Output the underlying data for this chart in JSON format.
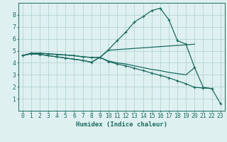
{
  "bg_color": "#dff0f0",
  "line_color": "#1a6b60",
  "grid_color": "#aacfcf",
  "xlabel": "Humidex (Indice chaleur)",
  "xlabel_fontsize": 6.5,
  "tick_fontsize": 5.8,
  "xlim": [
    -0.5,
    23.5
  ],
  "ylim": [
    0,
    9
  ],
  "yticks": [
    1,
    2,
    3,
    4,
    5,
    6,
    7,
    8
  ],
  "xticks": [
    0,
    1,
    2,
    3,
    4,
    5,
    6,
    7,
    8,
    9,
    10,
    11,
    12,
    13,
    14,
    15,
    16,
    17,
    18,
    19,
    20,
    21,
    22,
    23
  ],
  "line1_x": [
    0,
    1,
    2,
    3,
    4,
    5,
    6,
    7,
    8,
    9,
    10,
    11,
    12,
    13,
    14,
    15,
    16,
    17,
    18,
    19,
    20,
    21,
    22
  ],
  "line1_y": [
    4.6,
    4.8,
    4.8,
    4.75,
    4.7,
    4.65,
    4.6,
    4.5,
    4.45,
    4.45,
    5.1,
    5.85,
    6.55,
    7.4,
    7.85,
    8.35,
    8.55,
    7.6,
    5.85,
    5.55,
    3.6,
    1.95,
    1.85
  ],
  "line2_x": [
    0,
    1,
    2,
    3,
    4,
    5,
    6,
    7,
    8,
    9,
    10,
    11,
    12,
    13,
    14,
    15,
    16,
    17,
    18,
    19,
    20
  ],
  "line2_y": [
    4.6,
    4.8,
    4.8,
    4.75,
    4.7,
    4.65,
    4.6,
    4.5,
    4.45,
    4.45,
    5.05,
    5.1,
    5.15,
    5.2,
    5.25,
    5.3,
    5.35,
    5.4,
    5.45,
    5.5,
    5.55
  ],
  "line3_x": [
    0,
    1,
    2,
    3,
    4,
    5,
    6,
    7,
    8,
    9,
    10,
    11,
    12,
    13,
    14,
    15,
    16,
    17,
    18,
    19,
    20
  ],
  "line3_y": [
    4.6,
    4.75,
    4.7,
    4.6,
    4.5,
    4.4,
    4.3,
    4.2,
    4.05,
    4.45,
    4.15,
    4.0,
    3.9,
    3.75,
    3.6,
    3.45,
    3.35,
    3.2,
    3.1,
    3.0,
    3.6
  ],
  "line4_x": [
    0,
    1,
    2,
    3,
    4,
    5,
    6,
    7,
    8,
    9,
    10,
    11,
    12,
    13,
    14,
    15,
    16,
    17,
    18,
    19,
    20,
    21,
    22,
    23
  ],
  "line4_y": [
    4.6,
    4.75,
    4.7,
    4.6,
    4.5,
    4.4,
    4.3,
    4.2,
    4.05,
    4.45,
    4.1,
    3.9,
    3.75,
    3.55,
    3.35,
    3.15,
    2.95,
    2.75,
    2.5,
    2.25,
    1.95,
    1.9,
    1.85,
    0.6
  ]
}
